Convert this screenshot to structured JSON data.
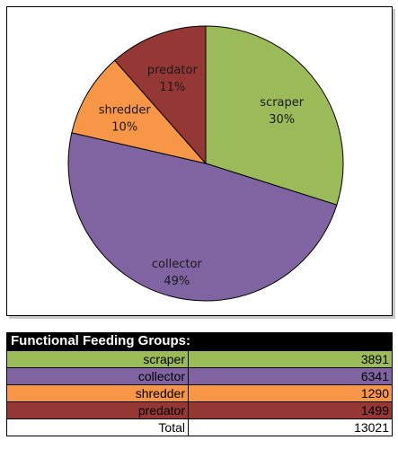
{
  "chart_data": {
    "type": "pie",
    "slices": [
      {
        "label": "scraper",
        "value": 3891,
        "percent_label": "30%",
        "color": "#9bbb59"
      },
      {
        "label": "collector",
        "value": 6341,
        "percent_label": "49%",
        "color": "#8064a2"
      },
      {
        "label": "shredder",
        "value": 1290,
        "percent_label": "10%",
        "color": "#f79646"
      },
      {
        "label": "predator",
        "value": 1499,
        "percent_label": "11%",
        "color": "#953735"
      }
    ]
  },
  "table": {
    "title": "Functional Feeding Groups:",
    "rows": [
      {
        "label": "scraper",
        "value": "3891",
        "color": "#9bbb59"
      },
      {
        "label": "collector",
        "value": "6341",
        "color": "#8064a2"
      },
      {
        "label": "shredder",
        "value": "1290",
        "color": "#f79646"
      },
      {
        "label": "predator",
        "value": "1499",
        "color": "#953735"
      }
    ],
    "total_label": "Total",
    "total_value": "13021"
  }
}
